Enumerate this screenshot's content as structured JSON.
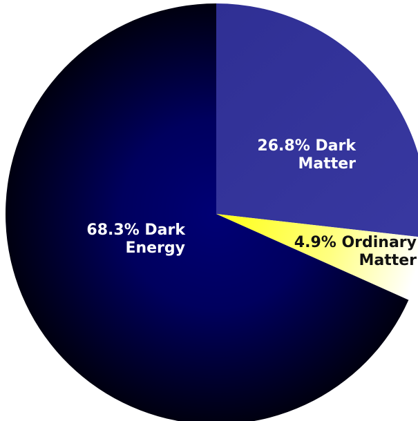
{
  "chart_data": {
    "type": "pie",
    "title": "",
    "start_angle_deg": 0,
    "direction": "clockwise",
    "slices": [
      {
        "key": "dark-matter",
        "value": 26.8,
        "label_lines": [
          "26.8% Dark",
          "Matter"
        ],
        "color": "#33339a",
        "label_color": "#ffffff"
      },
      {
        "key": "ordinary-matter",
        "value": 4.9,
        "label_lines": [
          "4.9% Ordinary",
          "Matter"
        ],
        "color": "#ffff33",
        "color_end": "#ffffff",
        "label_color": "#111111"
      },
      {
        "key": "dark-energy",
        "value": 68.3,
        "label_lines": [
          "68.3% Dark",
          "Energy"
        ],
        "color": "#000070",
        "color_edge": "#000000",
        "label_color": "#ffffff"
      }
    ],
    "legend": "none"
  }
}
